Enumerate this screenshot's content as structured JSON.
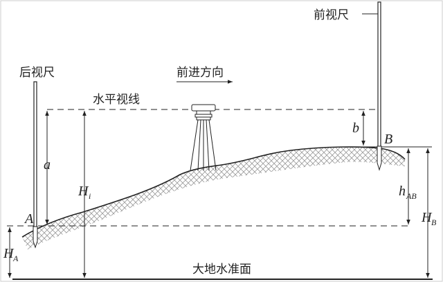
{
  "labels": {
    "back_rod": "后视尺",
    "front_rod": "前视尺",
    "direction": "前进方向",
    "sight_line": "水平视线",
    "geoid": "大地水准面",
    "point_a": "A",
    "point_b": "B",
    "back_reading": "a",
    "front_reading": "b",
    "instrument_height_main": "H",
    "instrument_height_sub": "i",
    "height_a_main": "H",
    "height_a_sub": "A",
    "height_b_main": "H",
    "height_b_sub": "B",
    "diff_main": "h",
    "diff_sub": "AB"
  },
  "colors": {
    "line": "#222222",
    "hatch": "#9a9a9a",
    "frame": "#cccccc"
  }
}
